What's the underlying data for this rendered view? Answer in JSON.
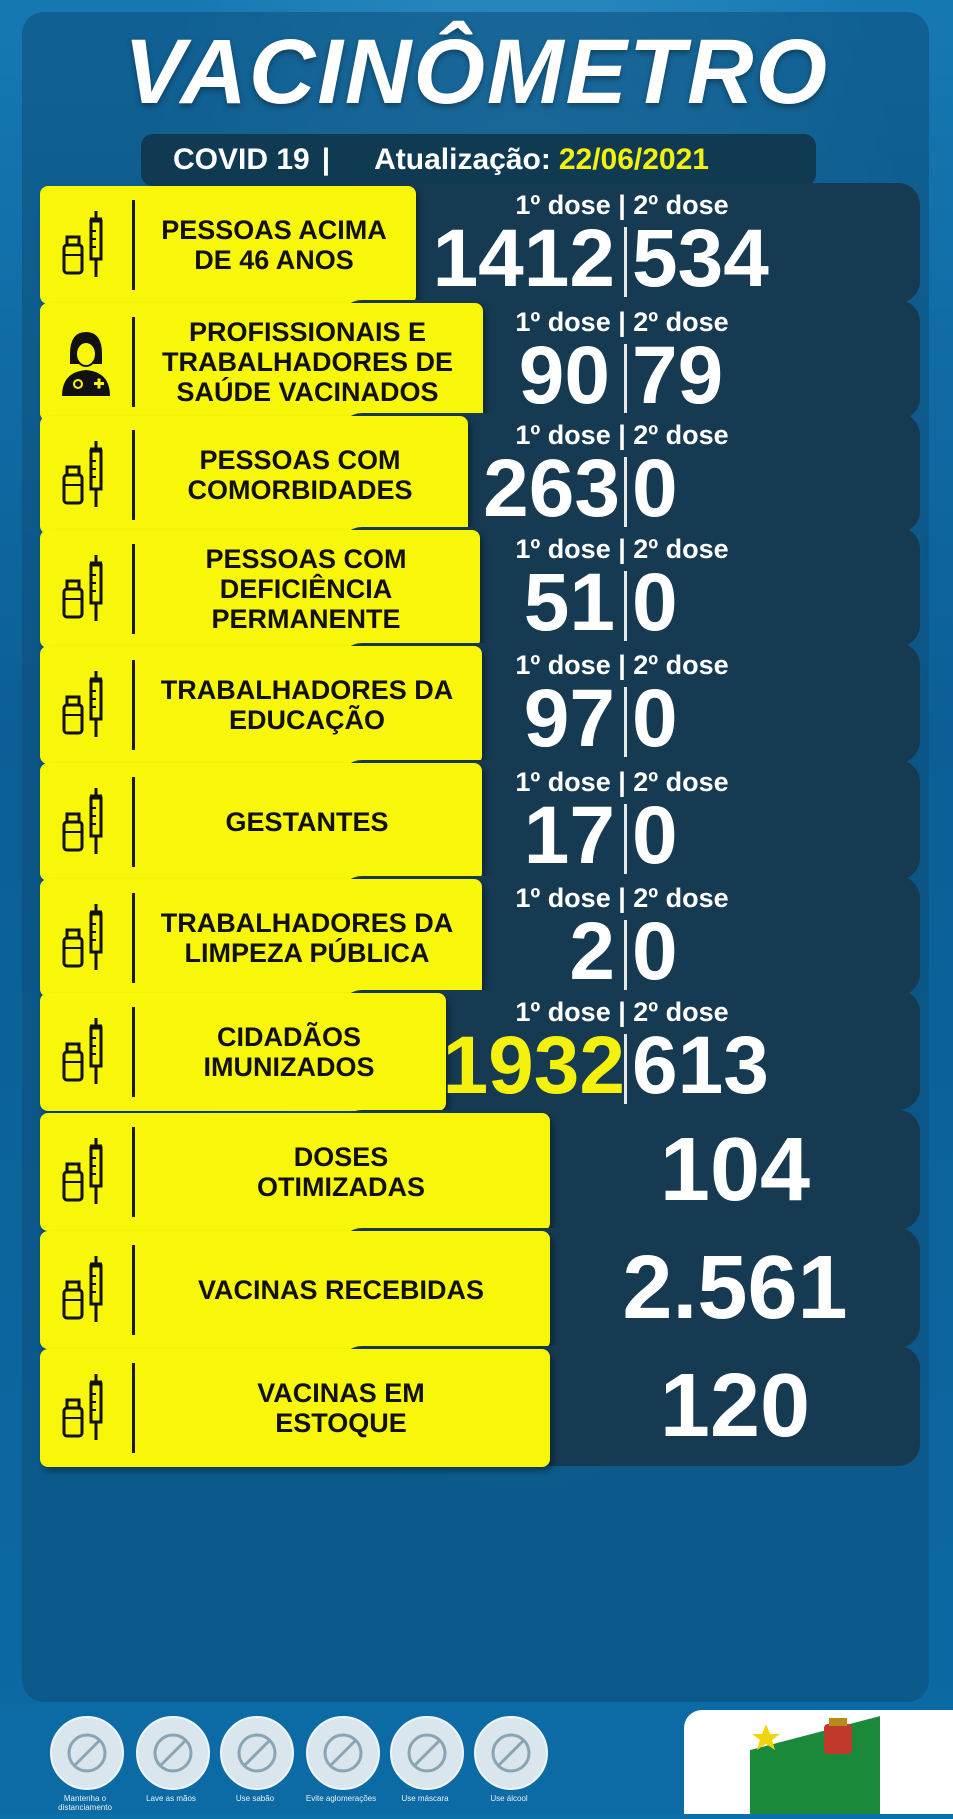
{
  "header": {
    "title": "VACINÔMETRO",
    "covid": "COVID 19",
    "pipe": "|",
    "update_label": "Atualização:",
    "update_date": "22/06/2021"
  },
  "dose_header": "1º dose | 2º dose",
  "rows": [
    {
      "label": "PESSOAS ACIMA\nDE 46 ANOS",
      "icon": "vaccine-icon",
      "dose1": "1412",
      "dose2": "534"
    },
    {
      "label": "PROFISSIONAIS E\nTRABALHADORES DE\nSAÚDE VACINADOS",
      "icon": "health-worker-icon",
      "dose1": "90",
      "dose2": "79"
    },
    {
      "label": "PESSOAS COM\nCOMORBIDADES",
      "icon": "vaccine-icon",
      "dose1": "263",
      "dose2": "0"
    },
    {
      "label": "PESSOAS COM DEFICIÊNCIA\nPERMANENTE",
      "icon": "vaccine-icon",
      "dose1": "51",
      "dose2": "0"
    },
    {
      "label": "TRABALHADORES DA\nEDUCAÇÃO",
      "icon": "vaccine-icon",
      "dose1": "97",
      "dose2": "0"
    },
    {
      "label": "GESTANTES",
      "icon": "vaccine-icon",
      "dose1": "17",
      "dose2": "0"
    },
    {
      "label": "TRABALHADORES DA\nLIMPEZA PÚBLICA",
      "icon": "vaccine-icon",
      "dose1": "2",
      "dose2": "0"
    },
    {
      "label": "CIDADÃOS\nIMUNIZADOS",
      "icon": "vaccine-icon",
      "dose1": "1932",
      "dose2": "613"
    }
  ],
  "singles": [
    {
      "label": "DOSES\nOTIMIZADAS",
      "icon": "vaccine-icon",
      "value": "104"
    },
    {
      "label": "VACINAS RECEBIDAS",
      "icon": "vaccine-icon",
      "value": "2.561"
    },
    {
      "label": "VACINAS EM\nESTOQUE",
      "icon": "vaccine-icon",
      "value": "120"
    }
  ],
  "footer_icons": [
    {
      "icon": "handshake-distance-icon",
      "caption": "Mantenha o distanciamento"
    },
    {
      "icon": "wash-hands-icon",
      "caption": "Lave as mãos"
    },
    {
      "icon": "soap-icon",
      "caption": "Use sabão"
    },
    {
      "icon": "avoid-crowds-icon",
      "caption": "Evite aglomerações"
    },
    {
      "icon": "mask-icon",
      "caption": "Use máscara"
    },
    {
      "icon": "alcohol-gel-icon",
      "caption": "Use álcool"
    }
  ],
  "colors": {
    "accent_yellow": "#f8f70a",
    "highlight_number": "#f4f20c",
    "dark_panel": "#153a52",
    "background": "#0d6fa8"
  }
}
